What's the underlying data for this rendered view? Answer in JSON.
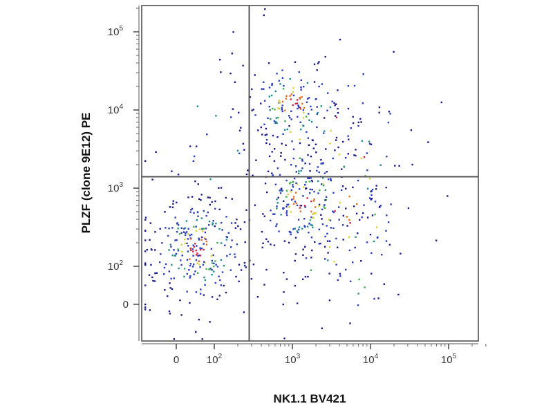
{
  "chart_data": {
    "type": "scatter",
    "title": "",
    "xlabel": "NK1.1 BV421",
    "ylabel": "PLZF (clone 9E12) PE",
    "x_scale": "biexponential",
    "y_scale": "biexponential",
    "xlim": [
      -60,
      300000
    ],
    "ylim": [
      -60,
      300000
    ],
    "x_ticks": [
      {
        "value": 0,
        "base": "0",
        "exp": ""
      },
      {
        "value": 100,
        "base": "10",
        "exp": "2"
      },
      {
        "value": 1000,
        "base": "10",
        "exp": "3"
      },
      {
        "value": 10000,
        "base": "10",
        "exp": "4"
      },
      {
        "value": 100000,
        "base": "10",
        "exp": "5"
      }
    ],
    "y_ticks": [
      {
        "value": 0,
        "base": "0",
        "exp": ""
      },
      {
        "value": 100,
        "base": "10",
        "exp": "2"
      },
      {
        "value": 1000,
        "base": "10",
        "exp": "3"
      },
      {
        "value": 10000,
        "base": "10",
        "exp": "4"
      },
      {
        "value": 100000,
        "base": "10",
        "exp": "5"
      }
    ],
    "quadrant_gates": {
      "x": 280,
      "y": 1400
    },
    "populations": [
      {
        "quadrant": "upper-right",
        "center": [
          1000,
          12000
        ],
        "count": 230
      },
      {
        "quadrant": "lower-right",
        "center": [
          1400,
          700
        ],
        "count": 330
      },
      {
        "quadrant": "lower-left",
        "center": [
          55,
          170
        ],
        "count": 300
      },
      {
        "quadrant": "upper-left",
        "center": [
          60,
          3500
        ],
        "count": 10
      }
    ],
    "density_colors": [
      "#1a1a8c",
      "#2a3cc0",
      "#1f8a8a",
      "#3cb04a",
      "#d8d030",
      "#e07020",
      "#d02040"
    ],
    "grid": false,
    "legend": "none"
  }
}
